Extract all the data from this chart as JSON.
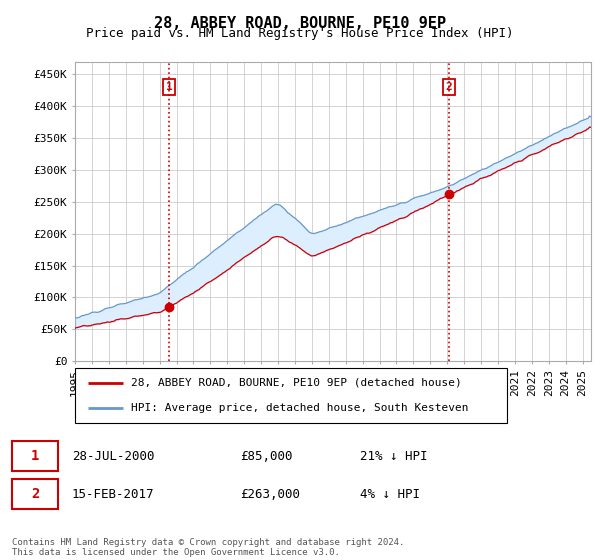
{
  "title": "28, ABBEY ROAD, BOURNE, PE10 9EP",
  "subtitle": "Price paid vs. HM Land Registry's House Price Index (HPI)",
  "ylabel_ticks": [
    "£0",
    "£50K",
    "£100K",
    "£150K",
    "£200K",
    "£250K",
    "£300K",
    "£350K",
    "£400K",
    "£450K"
  ],
  "ytick_vals": [
    0,
    50000,
    100000,
    150000,
    200000,
    250000,
    300000,
    350000,
    400000,
    450000
  ],
  "ylim": [
    0,
    470000
  ],
  "xlim_start": 1995.0,
  "xlim_end": 2025.5,
  "hpi_color": "#6699cc",
  "hpi_fill_color": "#ddeeff",
  "price_color": "#cc0000",
  "vline_color": "#cc0000",
  "grid_color": "#cccccc",
  "sale1_x": 2000.57,
  "sale1_y": 85000,
  "sale2_x": 2017.12,
  "sale2_y": 263000,
  "legend_label1": "28, ABBEY ROAD, BOURNE, PE10 9EP (detached house)",
  "legend_label2": "HPI: Average price, detached house, South Kesteven",
  "ann1_date": "28-JUL-2000",
  "ann1_price": "£85,000",
  "ann1_hpi": "21% ↓ HPI",
  "ann2_date": "15-FEB-2017",
  "ann2_price": "£263,000",
  "ann2_hpi": "4% ↓ HPI",
  "footer": "Contains HM Land Registry data © Crown copyright and database right 2024.\nThis data is licensed under the Open Government Licence v3.0.",
  "background_color": "#ffffff"
}
